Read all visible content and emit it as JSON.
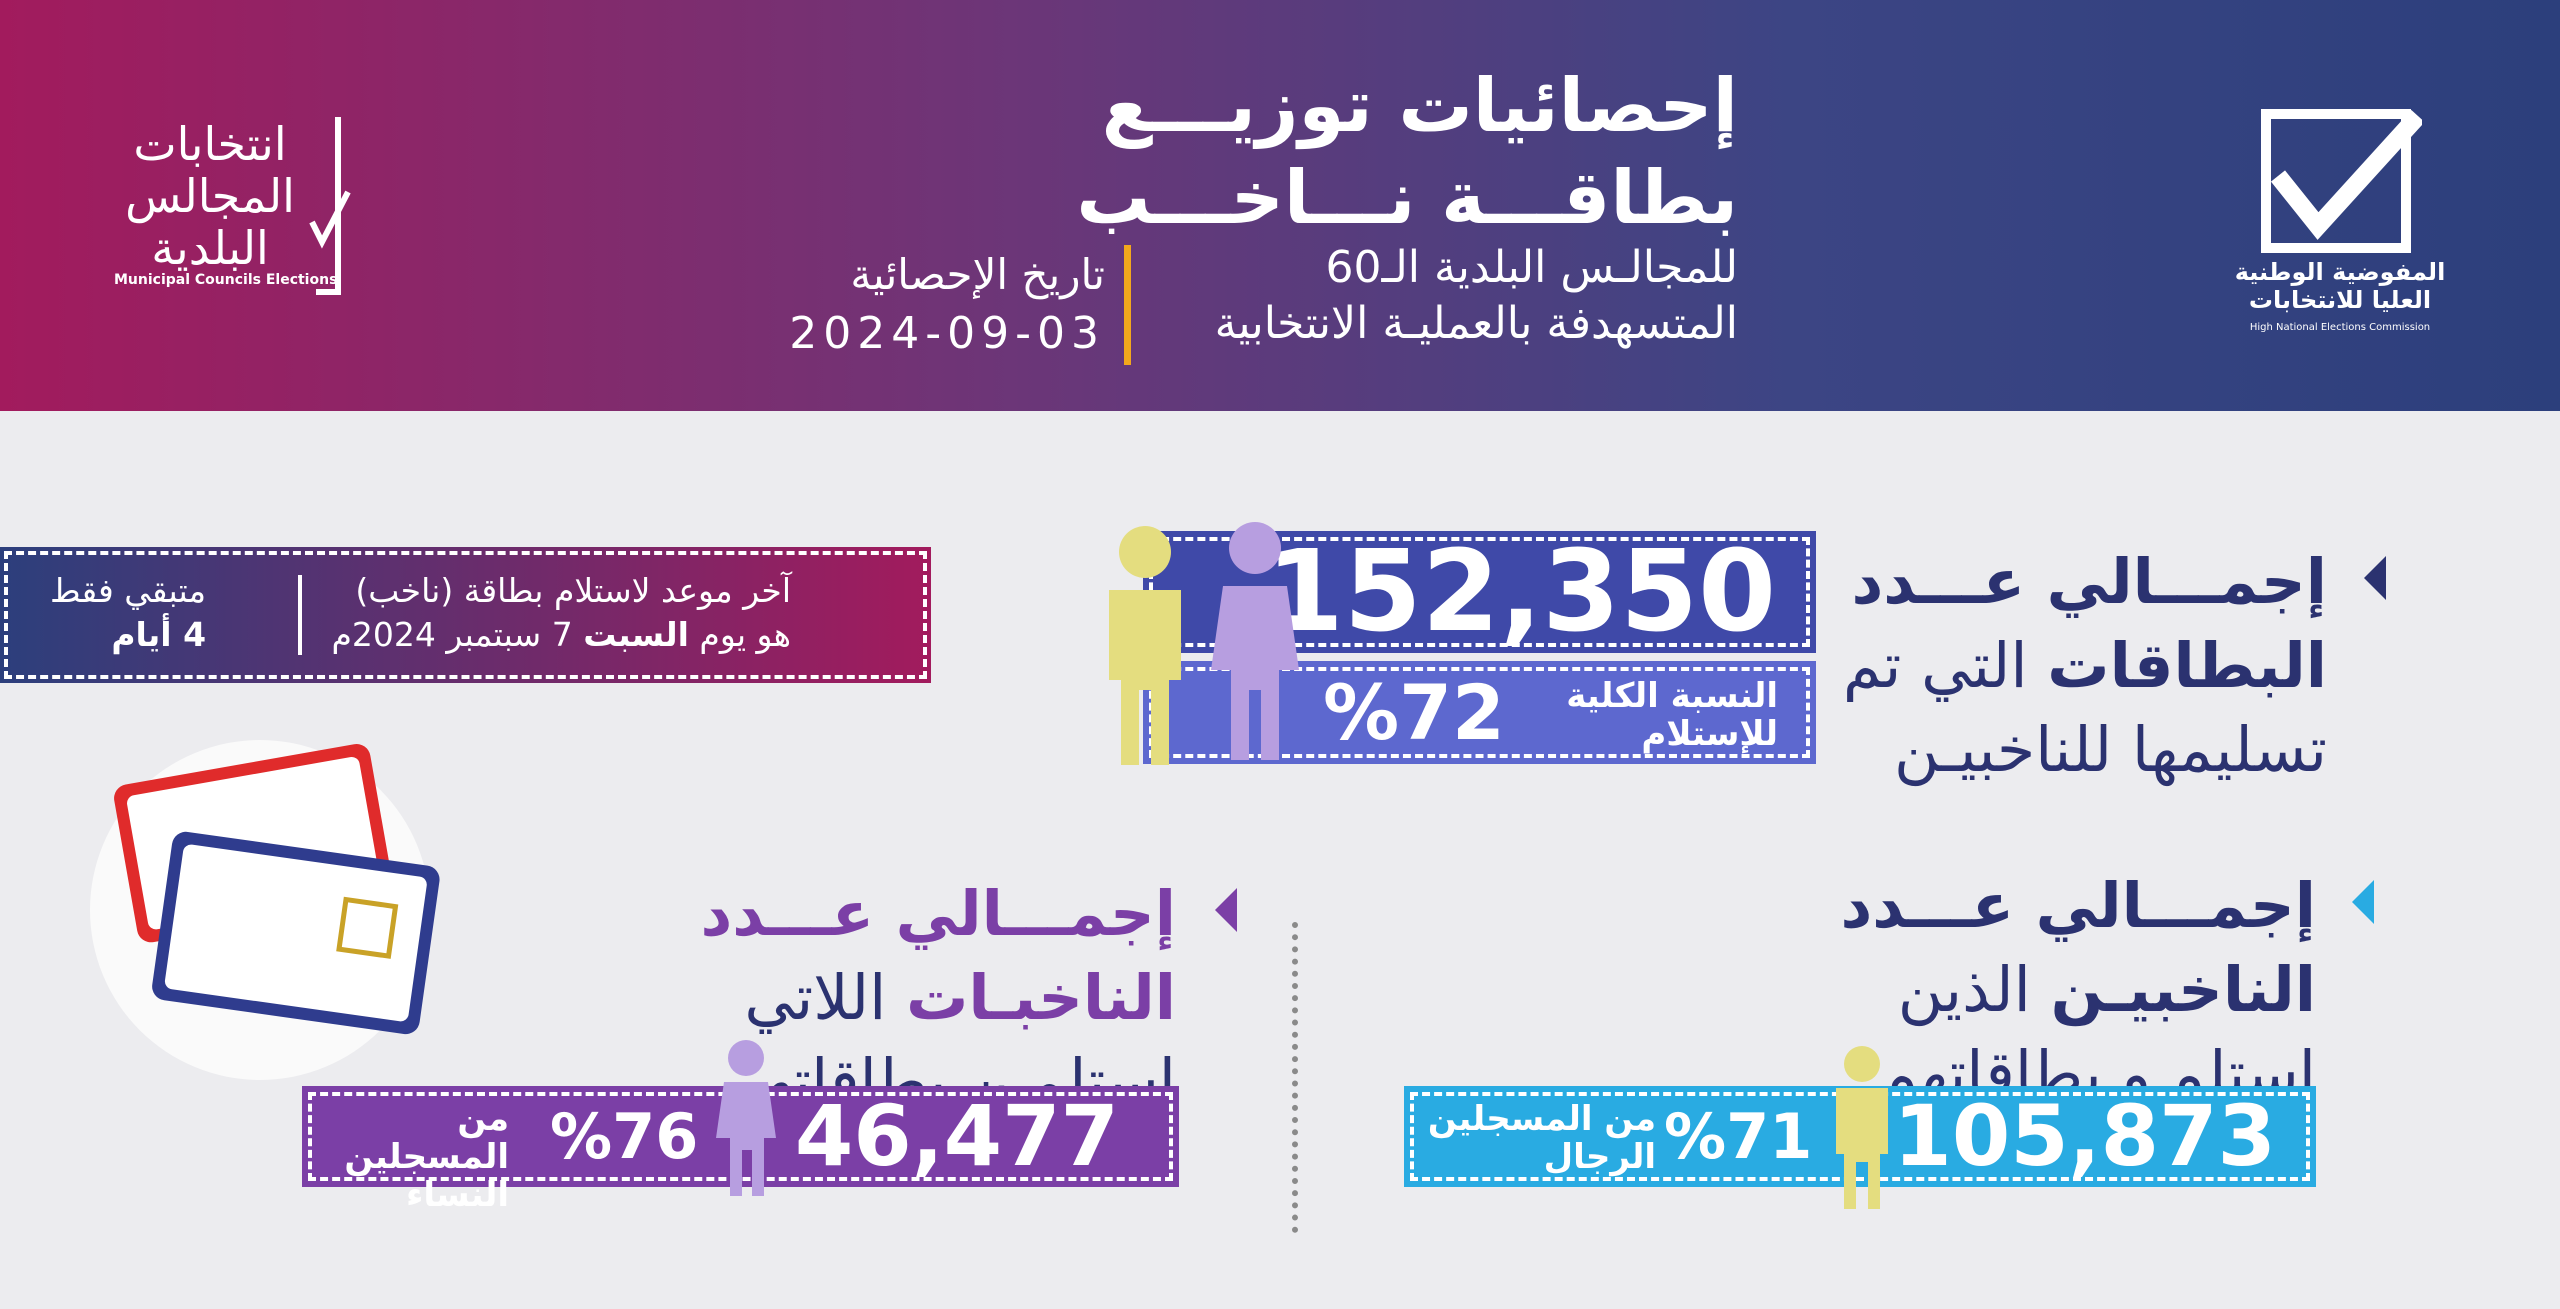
{
  "header": {
    "title_lines": [
      "إحصائيات توزيـــع",
      "بطاقـــة نـــاخـــب"
    ],
    "subtitle_lines": [
      "للمجالـس البلدية الـ60",
      "المتسهدفة بالعمليـة الانتخابية"
    ],
    "date_label": "تاريخ الإحصائية",
    "date": "2024-09-03"
  },
  "logo_left": {
    "text_lines": [
      "انتخابات",
      "المجالس",
      "البلدية"
    ],
    "caption": "Municipal Councils Elections"
  },
  "logo_right": {
    "text_lines": [
      "المفوضية الوطنية",
      "العليا للانتخابات"
    ],
    "caption": "High National Elections Commission"
  },
  "deadline": {
    "line1": "آخر موعد لاستلام بطاقة (ناخب)",
    "line2_before": "هو يوم",
    "line2_bold": "السبت",
    "line2_after": "7 سبتمبر 2024م",
    "remaining_label": "متبقي فقط",
    "remaining": "4 أيام"
  },
  "total": {
    "heading_line1": "إجمـــالي عـــدد",
    "heading_bold": "البطاقات",
    "heading_rest": "التي تم",
    "heading_line3": "تسليمها للناخبيـن",
    "value": "152,350",
    "percent_label_lines": [
      "النسبة الكلية",
      "للإستلام"
    ],
    "percent": "%72"
  },
  "men": {
    "heading_line1": "إجمـــالي عـــدد",
    "heading_bold": "الناخبيـن",
    "heading_rest": "الذين",
    "heading_line3": "استلمـو بطاقاتهم",
    "value": "105,873",
    "percent_label_lines": [
      "من المسجلين",
      "الرجال"
    ],
    "percent": "%71"
  },
  "women": {
    "heading_line1": "إجمـــالي عـــدد",
    "heading_bold": "الناخبـات",
    "heading_rest": "اللاتي",
    "heading_line3": "استلمـن بطاقاتهن",
    "value": "46,477",
    "percent_label_lines": [
      "من المسجلين",
      "النساء"
    ],
    "percent": "%76"
  }
}
